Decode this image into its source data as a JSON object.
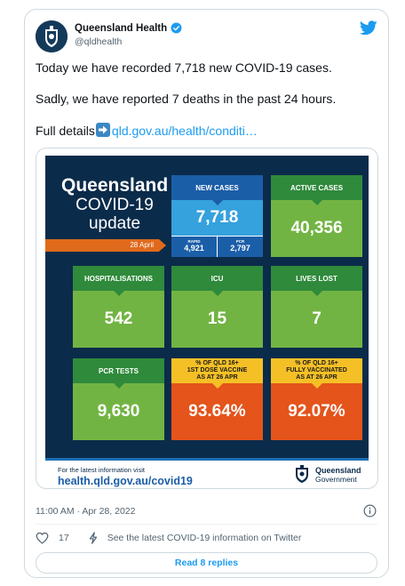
{
  "tweet": {
    "author_name": "Queensland Health",
    "handle": "@qldhealth",
    "line1": "Today we have recorded 7,718 new COVID-19 cases.",
    "line2": "Sadly, we have reported 7 deaths in the past 24 hours.",
    "line3_prefix": "Full details",
    "link_text": "qld.gov.au/health/conditi…",
    "timestamp": "11:00 AM · Apr 28, 2022",
    "like_count": "17",
    "info_link": "See the latest COVID-19 information on Twitter",
    "replies_button": "Read 8 replies"
  },
  "infographic": {
    "title_line1": "Queensland",
    "title_line2": "COVID-19",
    "title_line3": "update",
    "date": "28 April",
    "tiles": {
      "new_cases": {
        "label": "NEW CASES",
        "value": "7,718",
        "rapid_label": "RAPID",
        "rapid_value": "4,921",
        "pcr_label": "PCR",
        "pcr_value": "2,797"
      },
      "active_cases": {
        "label": "ACTIVE CASES",
        "value": "40,356"
      },
      "hospitalisations": {
        "label": "HOSPITALISATIONS",
        "value": "542"
      },
      "icu": {
        "label": "ICU",
        "value": "15"
      },
      "lives_lost": {
        "label": "LIVES LOST",
        "value": "7"
      },
      "pcr_tests": {
        "label": "PCR TESTS",
        "value": "9,630"
      },
      "first_dose": {
        "label_line1": "% OF QLD 16+",
        "label_line2": "1ST DOSE VACCINE",
        "label_line3": "AS AT 26 APR",
        "value": "93.64%"
      },
      "fully_vaccinated": {
        "label_line1": "% OF QLD 16+",
        "label_line2": "FULLY VACCINATED",
        "label_line3": "AS AT 26 APR",
        "value": "92.07%"
      }
    },
    "footer_lead": "For the latest information visit",
    "footer_url": "health.qld.gov.au/covid19",
    "gov_name": "Queensland",
    "gov_sub": "Government"
  },
  "colors": {
    "navy": "#0b2b4a",
    "green": "#72b443",
    "blue": "#35a1dd",
    "orange": "#e4541b",
    "yellow": "#f5c026",
    "twitter_blue": "#1d9bf0"
  },
  "icons": [
    "verified-badge-icon",
    "twitter-bird-icon",
    "right-arrow-emoji-icon",
    "info-icon",
    "heart-icon",
    "lightning-icon",
    "qld-crest-icon"
  ]
}
